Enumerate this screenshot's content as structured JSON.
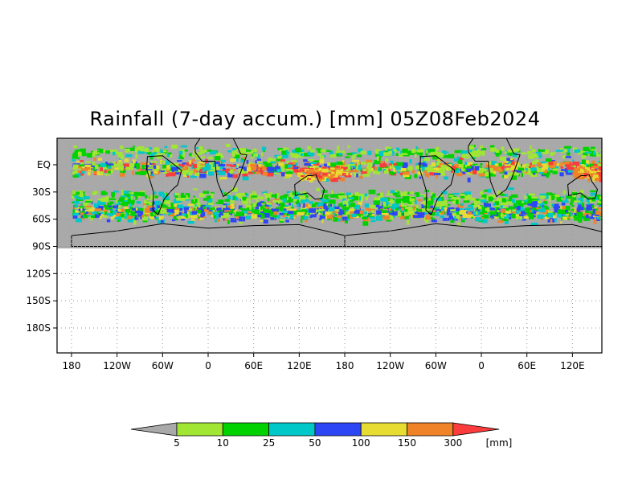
{
  "title": "Rainfall (7-day accum.) [mm] 05Z08Feb2024",
  "y_ticks": [
    "EQ",
    "30S",
    "60S",
    "90S",
    "120S",
    "150S",
    "180S"
  ],
  "x_ticks": [
    "180",
    "120W",
    "60W",
    "0",
    "60E",
    "120E",
    "180",
    "120W",
    "60W",
    "0",
    "60E",
    "120E"
  ],
  "colorbar": {
    "unit": "[mm]",
    "labels": [
      "5",
      "10",
      "25",
      "50",
      "100",
      "150",
      "300"
    ],
    "colors": {
      "below": "#a9a9a9",
      "bins": [
        "#a0e632",
        "#00d200",
        "#00c8c8",
        "#2d46f5",
        "#e6dc32",
        "#f08228",
        "#fa3c3c"
      ]
    }
  },
  "map_colors": {
    "dry": "#a9a9a9",
    "coast": "#000000",
    "grid": "#9a9a9a"
  }
}
